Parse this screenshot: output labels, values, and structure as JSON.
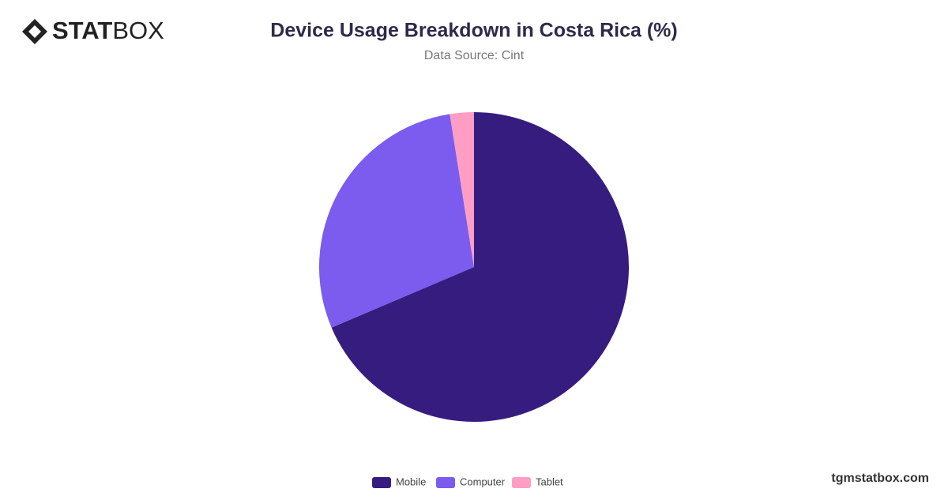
{
  "brand": {
    "bold": "STAT",
    "light": "BOX"
  },
  "footer": "tgmstatbox.com",
  "chart_data": {
    "type": "pie",
    "title": "Device Usage Breakdown in Costa Rica (%)",
    "subtitle": "Data Source: Cint",
    "categories": [
      "Mobile",
      "Computer",
      "Tablet"
    ],
    "values": [
      68.6,
      28.9,
      2.5
    ],
    "colors": [
      "#371c80",
      "#7b5cef",
      "#ff9ec4"
    ],
    "legend": "bottom"
  }
}
